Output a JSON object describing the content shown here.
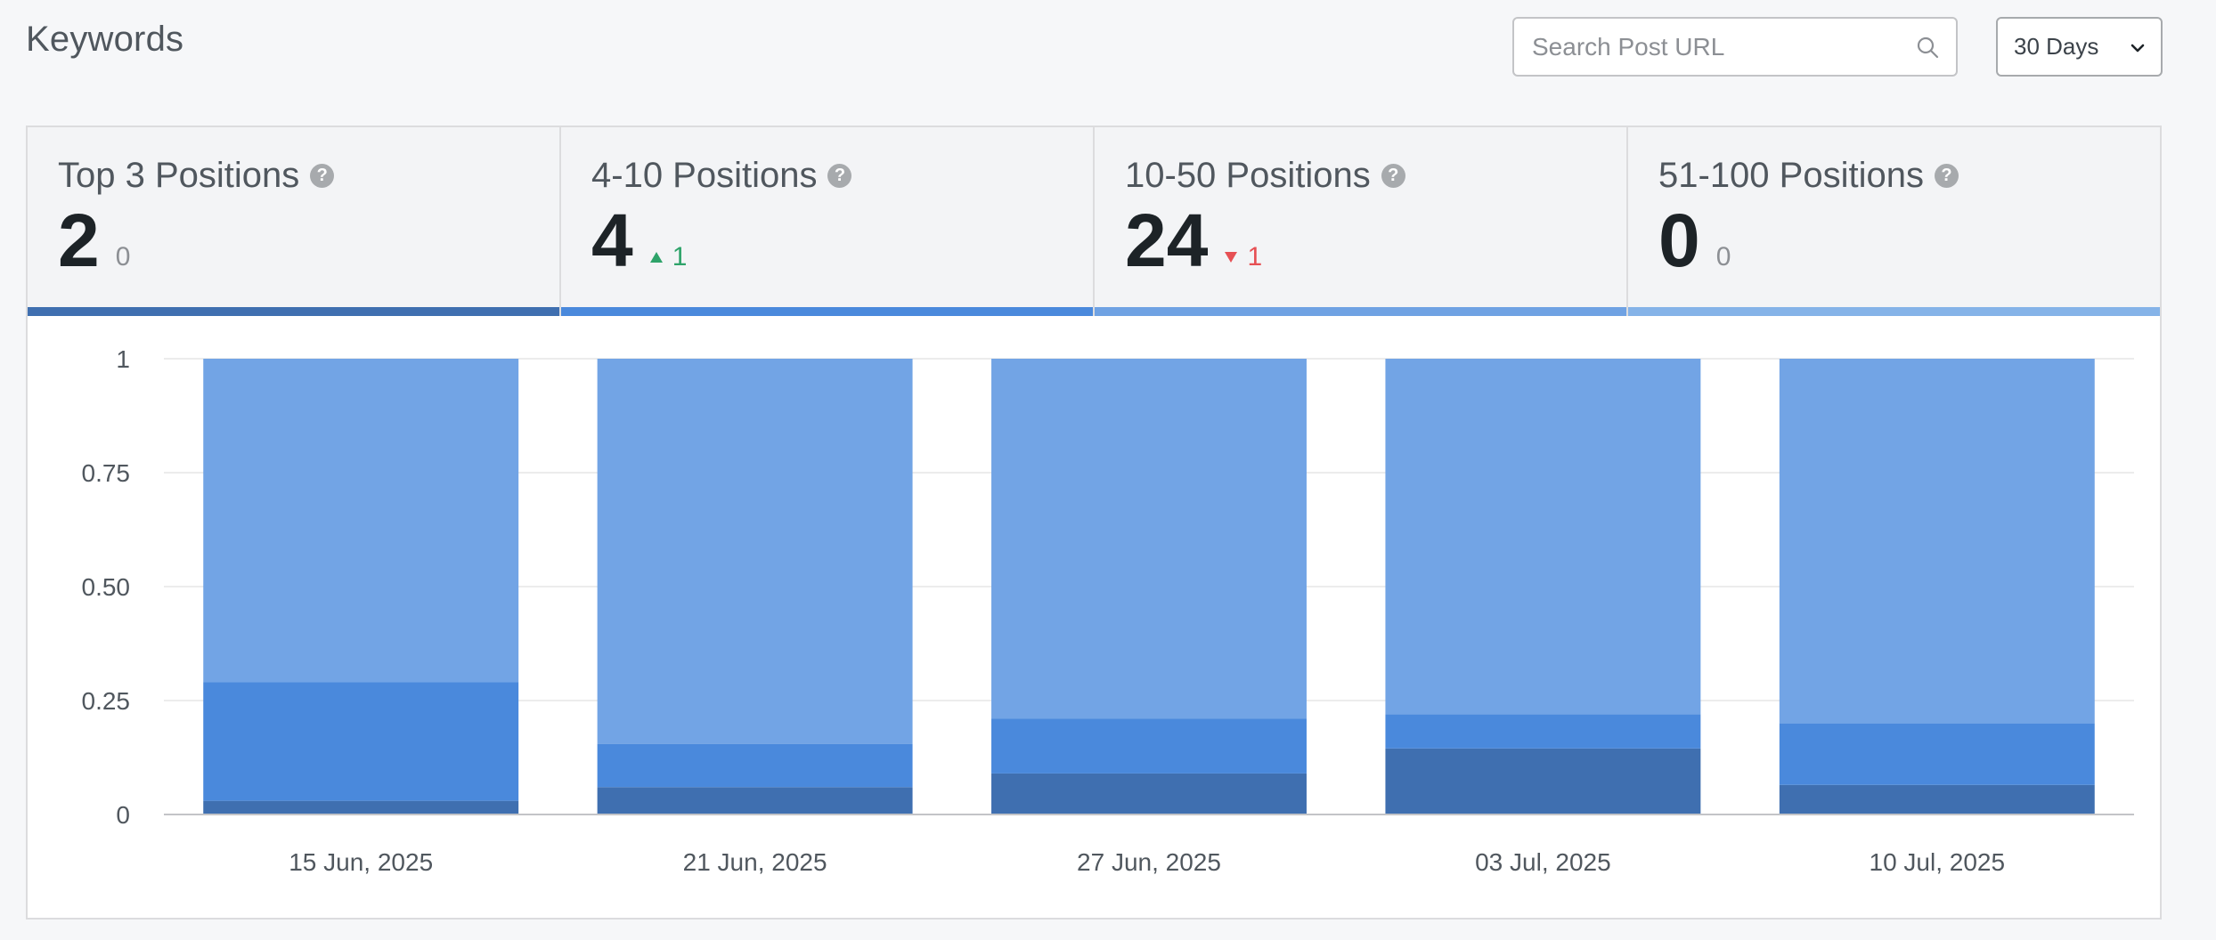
{
  "header": {
    "title": "Keywords"
  },
  "search": {
    "placeholder": "Search Post URL",
    "icon": "search-icon"
  },
  "range": {
    "value": "30 Days",
    "icon": "chevron-down-icon"
  },
  "cards": [
    {
      "title": "Top 3 Positions",
      "value": "2",
      "delta": "0",
      "trend": "none",
      "color": "#3f6fb0"
    },
    {
      "title": "4-10 Positions",
      "value": "4",
      "delta": "1",
      "trend": "up",
      "color": "#4a89dc"
    },
    {
      "title": "10-50 Positions",
      "value": "24",
      "delta": "1",
      "trend": "down",
      "color": "#6fa2e3"
    },
    {
      "title": "51-100 Positions",
      "value": "0",
      "delta": "0",
      "trend": "none",
      "color": "#85b3e8"
    }
  ],
  "chart_data": {
    "type": "bar",
    "stacked": true,
    "categories": [
      "15 Jun, 2025",
      "21 Jun, 2025",
      "27 Jun, 2025",
      "03 Jul, 2025",
      "10 Jul, 2025"
    ],
    "series": [
      {
        "name": "Top 3 Positions",
        "color": "#3f6fb0",
        "values": [
          0.03,
          0.06,
          0.09,
          0.145,
          0.065
        ]
      },
      {
        "name": "4-10 Positions",
        "color": "#4a89dc",
        "values": [
          0.26,
          0.095,
          0.12,
          0.075,
          0.135
        ]
      },
      {
        "name": "10-50 Positions",
        "color": "#72a4e5",
        "values": [
          0.71,
          0.845,
          0.79,
          0.78,
          0.8
        ]
      }
    ],
    "y_ticks": [
      "0",
      "0.25",
      "0.50",
      "0.75",
      "1"
    ],
    "ylim": [
      0,
      1
    ],
    "grid": true,
    "legend": "none"
  }
}
